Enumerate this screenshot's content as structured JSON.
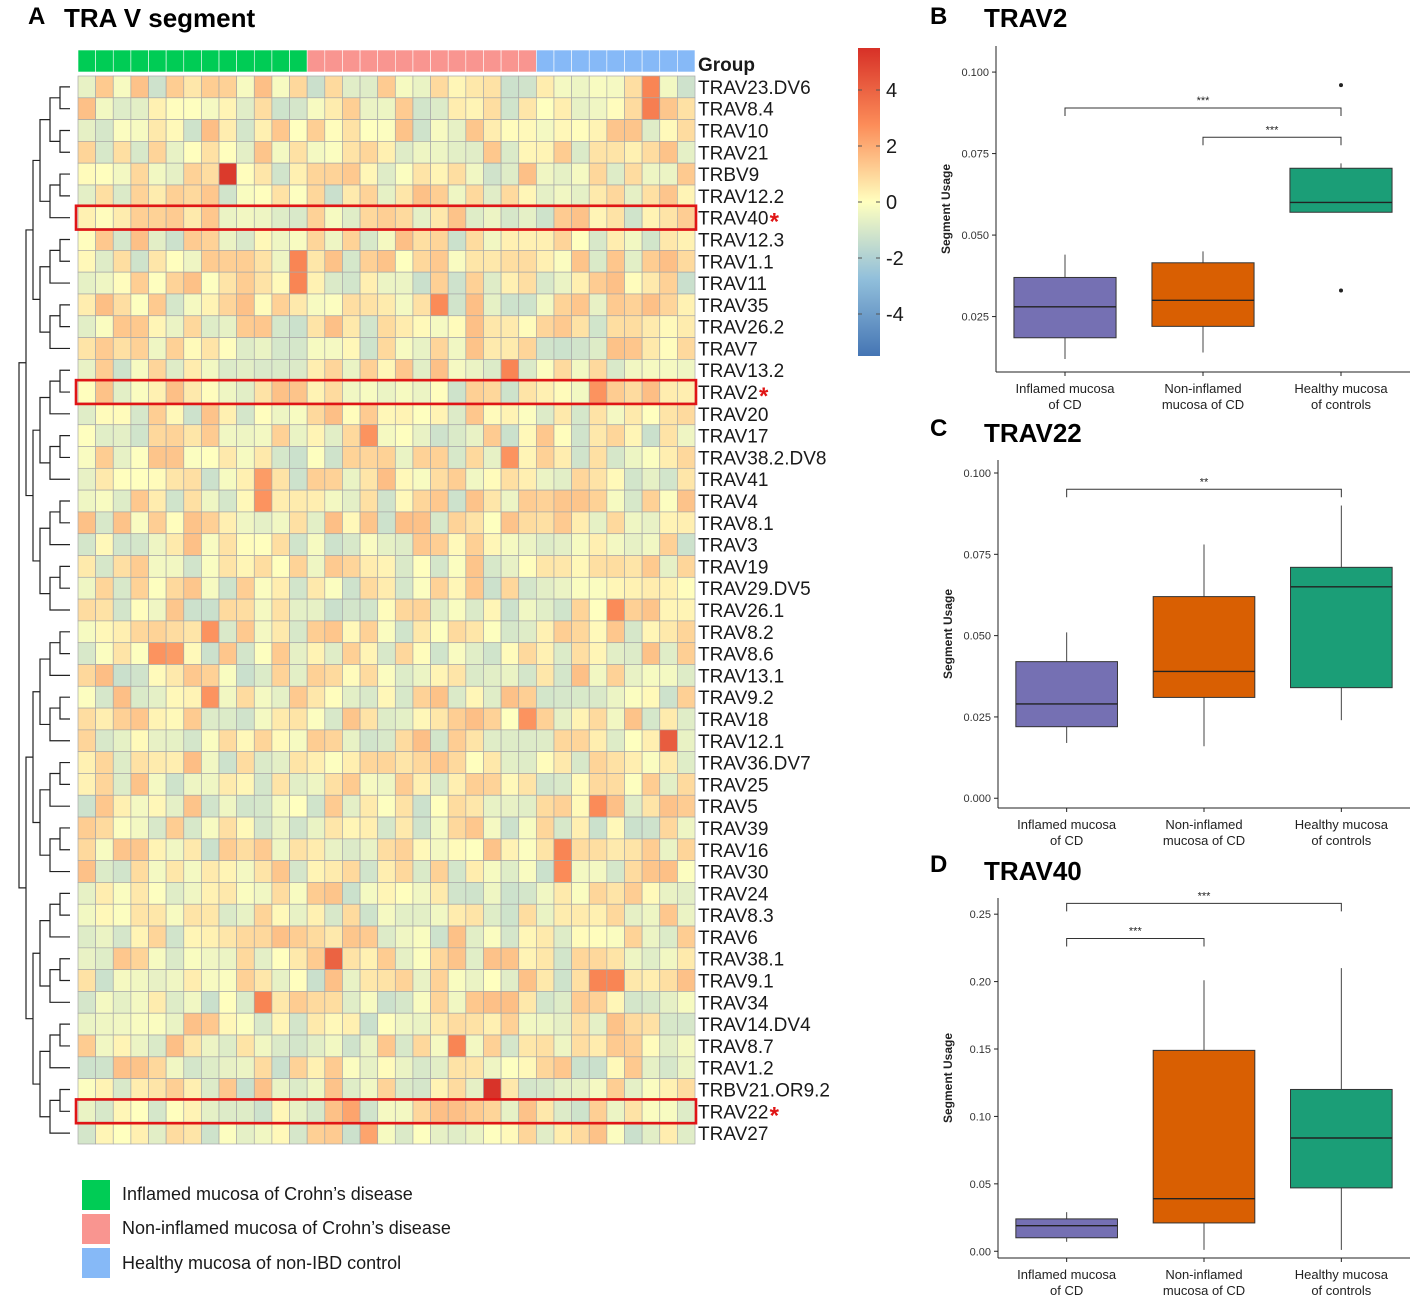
{
  "colors": {
    "inflamed": "#00cc55",
    "noninflamed": "#f99590",
    "healthy": "#86b9f7",
    "box_inflamed": "#7570b3",
    "box_noninflamed": "#d95f02",
    "box_healthy": "#1b9e77",
    "highlight": "#e01515",
    "scale_low": "#4575b4",
    "scale_mid": "#ffffbf",
    "scale_high": "#d73027"
  },
  "chart_data": [
    {
      "type": "heatmap",
      "panel": "A",
      "title": "TRA V segment",
      "group_label": "Group",
      "group_counts": [
        13,
        13,
        9
      ],
      "groups": [
        "inflamed",
        "noninflamed",
        "healthy"
      ],
      "rows": [
        "TRAV23.DV6",
        "TRAV8.4",
        "TRAV10",
        "TRAV21",
        "TRBV9",
        "TRAV12.2",
        "TRAV40",
        "TRAV12.3",
        "TRAV1.1",
        "TRAV11",
        "TRAV35",
        "TRAV26.2",
        "TRAV7",
        "TRAV13.2",
        "TRAV2",
        "TRAV20",
        "TRAV17",
        "TRAV38.2.DV8",
        "TRAV41",
        "TRAV4",
        "TRAV8.1",
        "TRAV3",
        "TRAV19",
        "TRAV29.DV5",
        "TRAV26.1",
        "TRAV8.2",
        "TRAV8.6",
        "TRAV13.1",
        "TRAV9.2",
        "TRAV18",
        "TRAV12.1",
        "TRAV36.DV7",
        "TRAV25",
        "TRAV5",
        "TRAV39",
        "TRAV16",
        "TRAV30",
        "TRAV24",
        "TRAV8.3",
        "TRAV6",
        "TRAV38.1",
        "TRAV9.1",
        "TRAV34",
        "TRAV14.DV4",
        "TRAV8.7",
        "TRAV1.2",
        "TRBV21.OR9.2",
        "TRAV22",
        "TRAV27"
      ],
      "highlighted_rows": [
        "TRAV40",
        "TRAV2",
        "TRAV22"
      ],
      "highlight_marker": "*",
      "colorbar": {
        "min": -5.5,
        "max": 5.5,
        "ticks": [
          "4",
          "2",
          "0",
          "-2",
          "-4"
        ],
        "tick_values": [
          4,
          2,
          0,
          -2,
          -4
        ]
      },
      "legend": [
        {
          "key": "inflamed",
          "label": "Inflamed mucosa of Crohn’s disease"
        },
        {
          "key": "noninflamed",
          "label": "Non-inflamed mucosa of Crohn’s disease"
        },
        {
          "key": "healthy",
          "label": "Healthy mucosa of non-IBD control"
        }
      ]
    },
    {
      "type": "box",
      "panel": "B",
      "title": "TRAV2",
      "ylabel": "Segment Usage",
      "ylim": [
        0.008,
        0.108
      ],
      "yticks": [
        0.025,
        0.05,
        0.075,
        0.1
      ],
      "ytick_labels": [
        "0.025",
        "0.050",
        "0.075",
        "0.100"
      ],
      "categories": [
        [
          "Inflamed mucosa",
          "of CD"
        ],
        [
          "Non-inflamed",
          "mucosa of CD"
        ],
        [
          "Healthy mucosa",
          "of controls"
        ]
      ],
      "boxes": [
        {
          "min": 0.012,
          "q1": 0.0185,
          "median": 0.028,
          "q3": 0.037,
          "max": 0.044,
          "outliers": []
        },
        {
          "min": 0.014,
          "q1": 0.022,
          "median": 0.03,
          "q3": 0.0415,
          "max": 0.045,
          "outliers": []
        },
        {
          "min": 0.057,
          "q1": 0.057,
          "median": 0.06,
          "q3": 0.0705,
          "max": 0.072,
          "outliers": [
            0.096,
            0.033
          ]
        }
      ],
      "significance": [
        {
          "from": 0,
          "to": 2,
          "y": 0.089,
          "label": "***"
        },
        {
          "from": 1,
          "to": 2,
          "y": 0.08,
          "label": "***"
        }
      ]
    },
    {
      "type": "box",
      "panel": "C",
      "title": "TRAV22",
      "ylabel": "Segment Usage",
      "ylim": [
        -0.003,
        0.104
      ],
      "yticks": [
        0.0,
        0.025,
        0.05,
        0.075,
        0.1
      ],
      "ytick_labels": [
        "0.000",
        "0.025",
        "0.050",
        "0.075",
        "0.100"
      ],
      "categories": [
        [
          "Inflamed mucosa",
          "of CD"
        ],
        [
          "Non-inflamed",
          "mucosa of CD"
        ],
        [
          "Healthy mucosa",
          "of controls"
        ]
      ],
      "boxes": [
        {
          "min": 0.017,
          "q1": 0.022,
          "median": 0.029,
          "q3": 0.042,
          "max": 0.051,
          "outliers": []
        },
        {
          "min": 0.016,
          "q1": 0.031,
          "median": 0.039,
          "q3": 0.062,
          "max": 0.078,
          "outliers": []
        },
        {
          "min": 0.024,
          "q1": 0.034,
          "median": 0.065,
          "q3": 0.071,
          "max": 0.09,
          "outliers": []
        }
      ],
      "significance": [
        {
          "from": 0,
          "to": 2,
          "y": 0.095,
          "label": "**"
        }
      ]
    },
    {
      "type": "box",
      "panel": "D",
      "title": "TRAV40",
      "ylabel": "Segment Usage",
      "ylim": [
        -0.005,
        0.262
      ],
      "yticks": [
        0.0,
        0.05,
        0.1,
        0.15,
        0.2,
        0.25
      ],
      "ytick_labels": [
        "0.00",
        "0.05",
        "0.10",
        "0.15",
        "0.20",
        "0.25"
      ],
      "categories": [
        [
          "Inflamed mucosa",
          "of CD"
        ],
        [
          "Non-inflamed",
          "mucosa of CD"
        ],
        [
          "Healthy mucosa",
          "of controls"
        ]
      ],
      "boxes": [
        {
          "min": 0.007,
          "q1": 0.01,
          "median": 0.019,
          "q3": 0.024,
          "max": 0.029,
          "outliers": []
        },
        {
          "min": 0.001,
          "q1": 0.021,
          "median": 0.039,
          "q3": 0.149,
          "max": 0.201,
          "outliers": []
        },
        {
          "min": 0.001,
          "q1": 0.047,
          "median": 0.084,
          "q3": 0.12,
          "max": 0.21,
          "outliers": []
        }
      ],
      "significance": [
        {
          "from": 0,
          "to": 2,
          "y": 0.258,
          "label": "***"
        },
        {
          "from": 0,
          "to": 1,
          "y": 0.232,
          "label": "***"
        }
      ]
    }
  ]
}
